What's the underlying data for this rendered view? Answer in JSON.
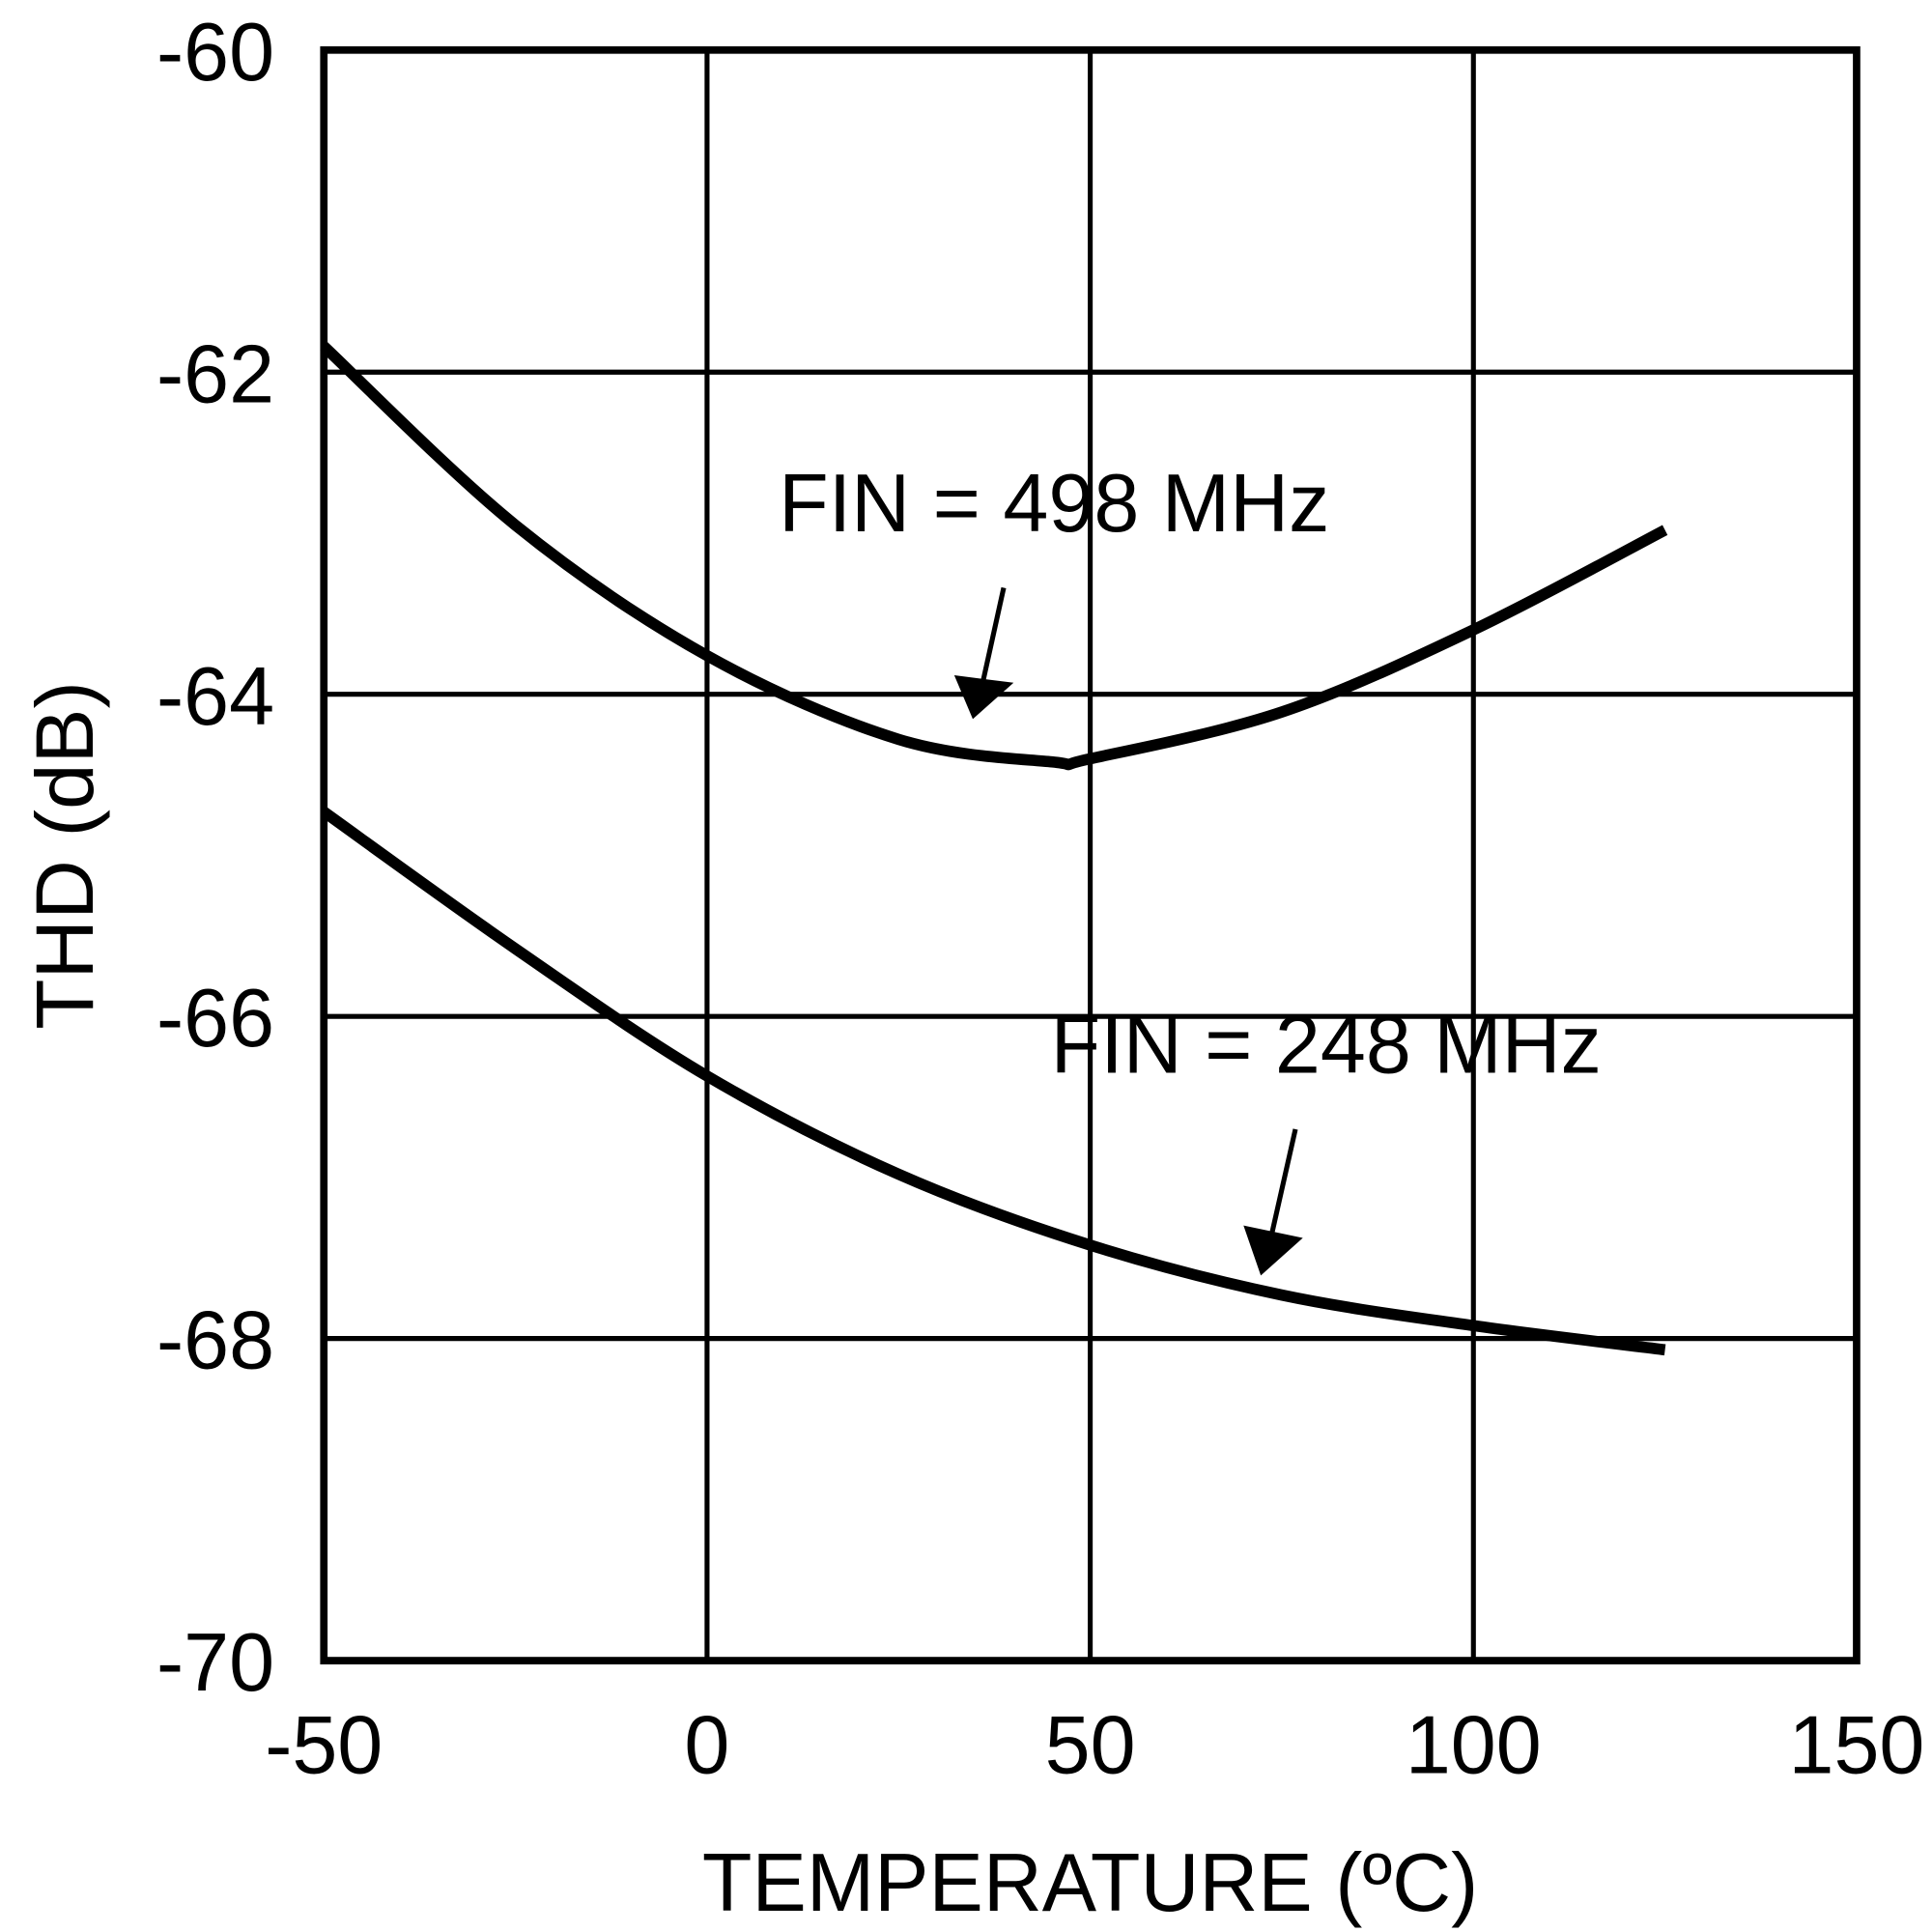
{
  "chart_data": {
    "type": "line",
    "title": "",
    "xlabel": "TEMPERATURE (ºC)",
    "ylabel": "THD (dB)",
    "xlim": [
      -50,
      150
    ],
    "ylim": [
      -70,
      -60
    ],
    "xticks": [
      "-50",
      "0",
      "50",
      "100",
      "150"
    ],
    "yticks": [
      "-60",
      "-62",
      "-64",
      "-66",
      "-68",
      "-70"
    ],
    "grid": true,
    "series": [
      {
        "name": "FIN = 498 MHz",
        "x": [
          -50,
          -25,
          0,
          25,
          45,
          50,
          75,
          100,
          125
        ],
        "y": [
          -61.84,
          -62.95,
          -63.76,
          -64.28,
          -64.42,
          -64.4,
          -64.11,
          -63.6,
          -62.98
        ]
      },
      {
        "name": "FIN = 248 MHz",
        "x": [
          -50,
          -25,
          0,
          25,
          50,
          75,
          100,
          125
        ],
        "y": [
          -64.73,
          -65.58,
          -66.37,
          -66.98,
          -67.42,
          -67.73,
          -67.92,
          -68.07
        ]
      }
    ]
  }
}
